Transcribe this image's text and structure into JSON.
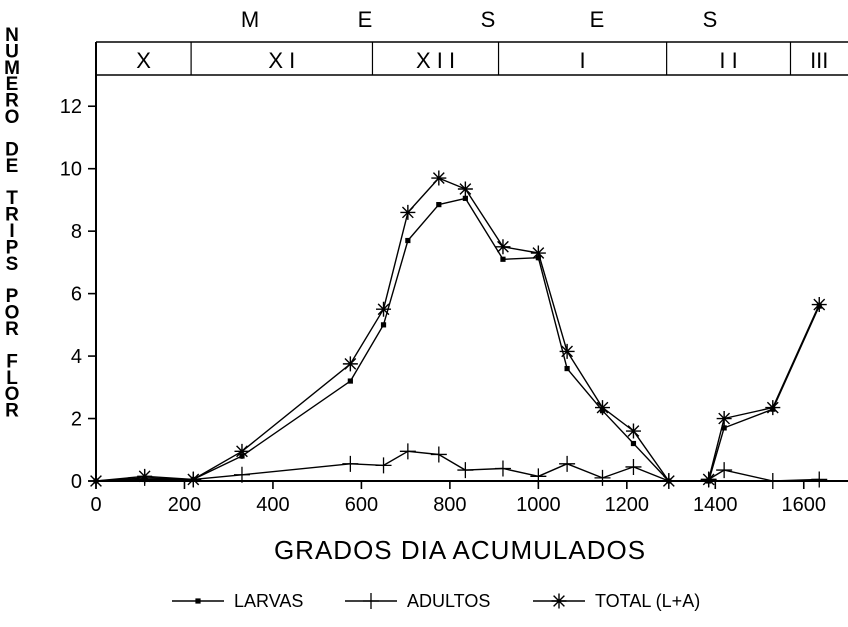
{
  "chart_data": {
    "type": "line",
    "title": "",
    "xlabel": "GRADOS DIA ACUMULADOS",
    "ylabel": "NUMERO DE TRIPS POR FLOR",
    "xlim": [
      0,
      1700
    ],
    "ylim": [
      0,
      13
    ],
    "x_ticks": [
      0,
      200,
      400,
      600,
      800,
      1000,
      1200,
      1400,
      1600
    ],
    "y_ticks": [
      0,
      2,
      4,
      6,
      8,
      10,
      12
    ],
    "top_axis_title_letters": [
      "M",
      "E",
      "S",
      "E",
      "S"
    ],
    "month_bands": [
      {
        "label": "X",
        "from": 0,
        "to": 215
      },
      {
        "label": "X I",
        "from": 215,
        "to": 625
      },
      {
        "label": "X I I",
        "from": 625,
        "to": 910
      },
      {
        "label": "I",
        "from": 910,
        "to": 1290
      },
      {
        "label": "I I",
        "from": 1290,
        "to": 1570
      },
      {
        "label": "III",
        "from": 1570,
        "to": 1700
      }
    ],
    "series": [
      {
        "name": "LARVAS",
        "marker": "dot",
        "segments": [
          [
            [
              0,
              0
            ],
            [
              110,
              0.05
            ],
            [
              220,
              0.05
            ],
            [
              330,
              0.8
            ],
            [
              575,
              3.2
            ],
            [
              650,
              5.0
            ],
            [
              705,
              7.7
            ],
            [
              775,
              8.85
            ],
            [
              835,
              9.05
            ],
            [
              920,
              7.1
            ],
            [
              1000,
              7.15
            ],
            [
              1065,
              3.6
            ],
            [
              1145,
              2.25
            ],
            [
              1215,
              1.2
            ],
            [
              1295,
              0
            ]
          ],
          [
            [
              1385,
              0
            ],
            [
              1420,
              1.7
            ],
            [
              1530,
              2.3
            ],
            [
              1635,
              5.6
            ]
          ]
        ]
      },
      {
        "name": "ADULTOS",
        "marker": "plus",
        "segments": [
          [
            [
              0,
              0
            ],
            [
              110,
              0.1
            ],
            [
              220,
              0.05
            ],
            [
              330,
              0.2
            ],
            [
              575,
              0.55
            ],
            [
              650,
              0.5
            ],
            [
              705,
              0.95
            ],
            [
              775,
              0.85
            ],
            [
              835,
              0.35
            ],
            [
              920,
              0.4
            ],
            [
              1000,
              0.15
            ],
            [
              1065,
              0.55
            ],
            [
              1145,
              0.1
            ],
            [
              1215,
              0.45
            ],
            [
              1295,
              0
            ]
          ],
          [
            [
              1385,
              0.05
            ],
            [
              1420,
              0.35
            ],
            [
              1530,
              0.0
            ],
            [
              1635,
              0.05
            ]
          ]
        ]
      },
      {
        "name": "TOTAL (L+A)",
        "marker": "asterisk",
        "segments": [
          [
            [
              0,
              0
            ],
            [
              110,
              0.15
            ],
            [
              220,
              0.05
            ],
            [
              330,
              0.95
            ],
            [
              575,
              3.75
            ],
            [
              650,
              5.5
            ],
            [
              705,
              8.6
            ],
            [
              775,
              9.7
            ],
            [
              835,
              9.35
            ],
            [
              920,
              7.5
            ],
            [
              1000,
              7.3
            ],
            [
              1065,
              4.15
            ],
            [
              1145,
              2.35
            ],
            [
              1215,
              1.6
            ],
            [
              1295,
              0
            ]
          ],
          [
            [
              1385,
              0.05
            ],
            [
              1420,
              2.0
            ],
            [
              1530,
              2.35
            ],
            [
              1635,
              5.65
            ]
          ]
        ]
      }
    ],
    "legend": {
      "placement": "bottom",
      "entries": [
        {
          "label": "LARVAS",
          "marker": "dot"
        },
        {
          "label": "ADULTOS",
          "marker": "plus"
        },
        {
          "label": "TOTAL (L+A)",
          "marker": "asterisk"
        }
      ]
    },
    "grid": false,
    "colors": {
      "line": "#000000",
      "background": "#ffffff"
    }
  }
}
